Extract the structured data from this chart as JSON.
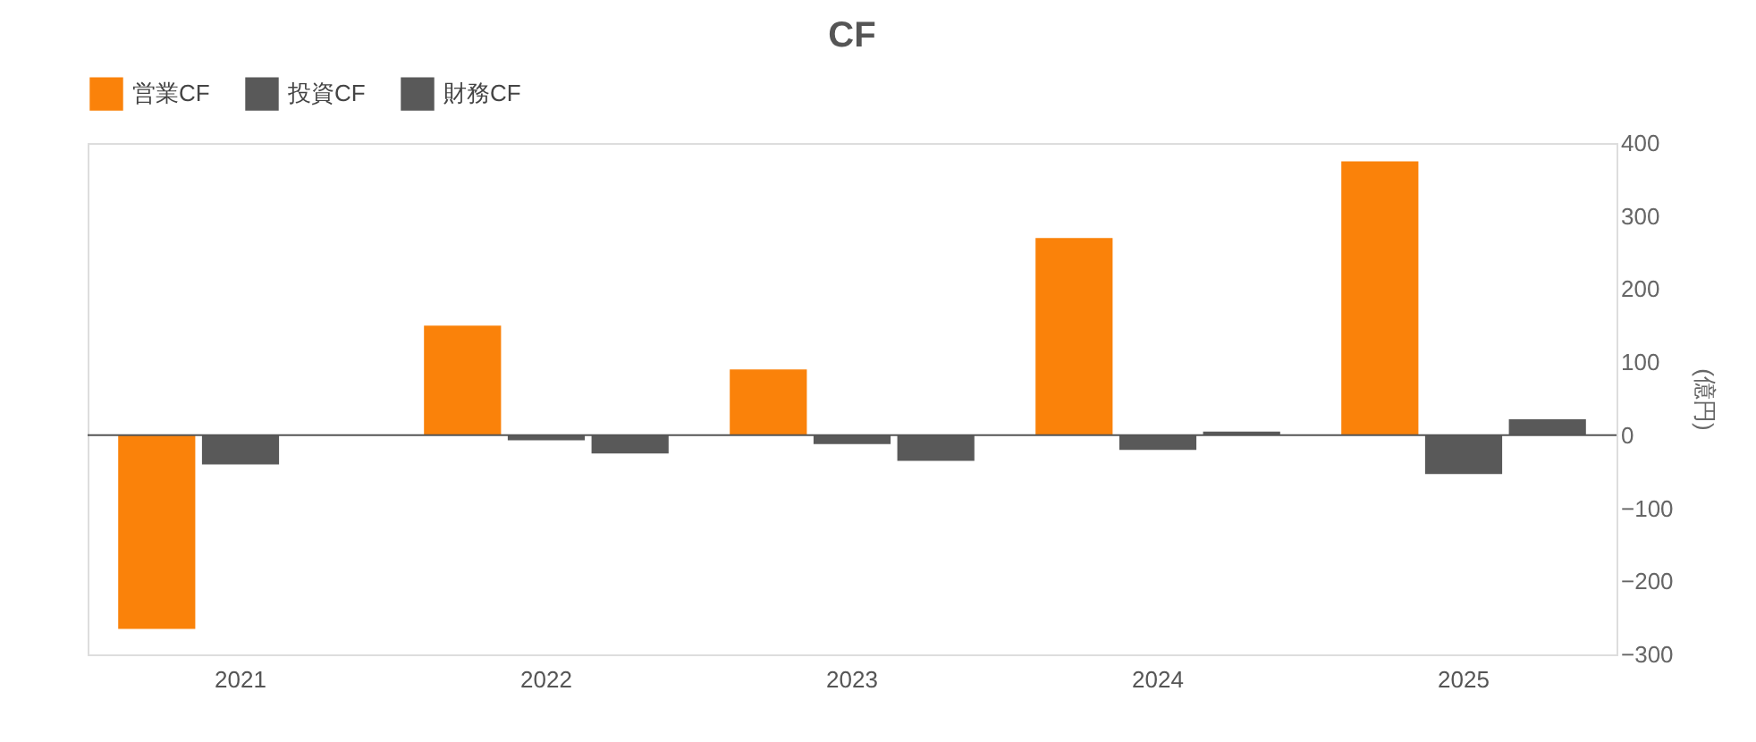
{
  "chart_data": {
    "type": "bar",
    "title": "CF",
    "ylabel": "(億円)",
    "categories": [
      "2021",
      "2022",
      "2023",
      "2024",
      "2025"
    ],
    "series": [
      {
        "name": "営業CF",
        "color": "#fa820a",
        "values": [
          -265,
          150,
          90,
          270,
          375
        ]
      },
      {
        "name": "投資CF",
        "color": "#595959",
        "values": [
          -40,
          -7,
          -12,
          -20,
          -53
        ]
      },
      {
        "name": "財務CF",
        "color": "#595959",
        "values": [
          0,
          -25,
          -35,
          5,
          22
        ]
      }
    ],
    "ylim": [
      -300,
      400
    ],
    "yticks": [
      -300,
      -200,
      -100,
      0,
      100,
      200,
      300,
      400
    ],
    "ref_lines": [
      {
        "axis": "y",
        "value": 0,
        "color": "#555555"
      }
    ],
    "grid": false,
    "legend": "top"
  }
}
